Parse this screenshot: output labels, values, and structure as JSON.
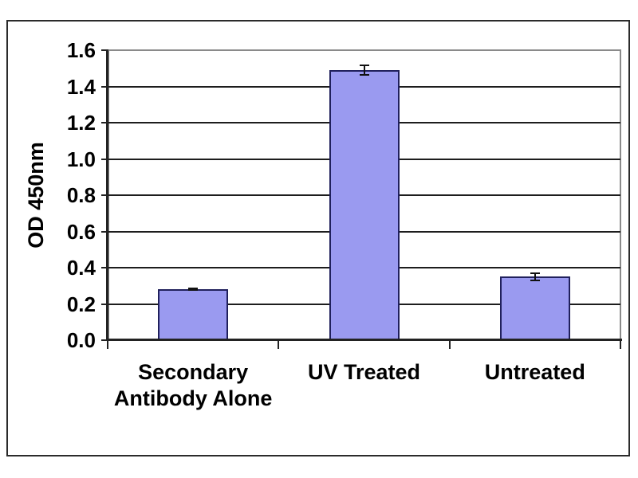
{
  "chart_data": {
    "type": "bar",
    "title": "",
    "xlabel": "",
    "ylabel": "OD 450nm",
    "categories": [
      "Secondary Antibody Alone",
      "UV Treated",
      "Untreated"
    ],
    "category_label_lines": [
      [
        "Secondary",
        "Antibody Alone"
      ],
      [
        "UV Treated"
      ],
      [
        "Untreated"
      ]
    ],
    "values": [
      0.28,
      1.49,
      0.35
    ],
    "errors": [
      0.005,
      0.025,
      0.02
    ],
    "ylim": [
      0,
      1.6
    ],
    "ytick_step": 0.2,
    "ytick_labels": [
      "0.0",
      "0.2",
      "0.4",
      "0.6",
      "0.8",
      "1.0",
      "1.2",
      "1.4",
      "1.6"
    ],
    "grid": "horizontal",
    "legend": "none",
    "colors": {
      "bar_fill": "#9a9af0",
      "bar_border": "#20205c",
      "gridline": "#1d1d1d",
      "axis": "#222222",
      "plot_border": "#8a8a8a",
      "frame_border": "#2b2b2b",
      "error_bar": "#111111",
      "text": "#000000",
      "background": "#ffffff"
    }
  }
}
